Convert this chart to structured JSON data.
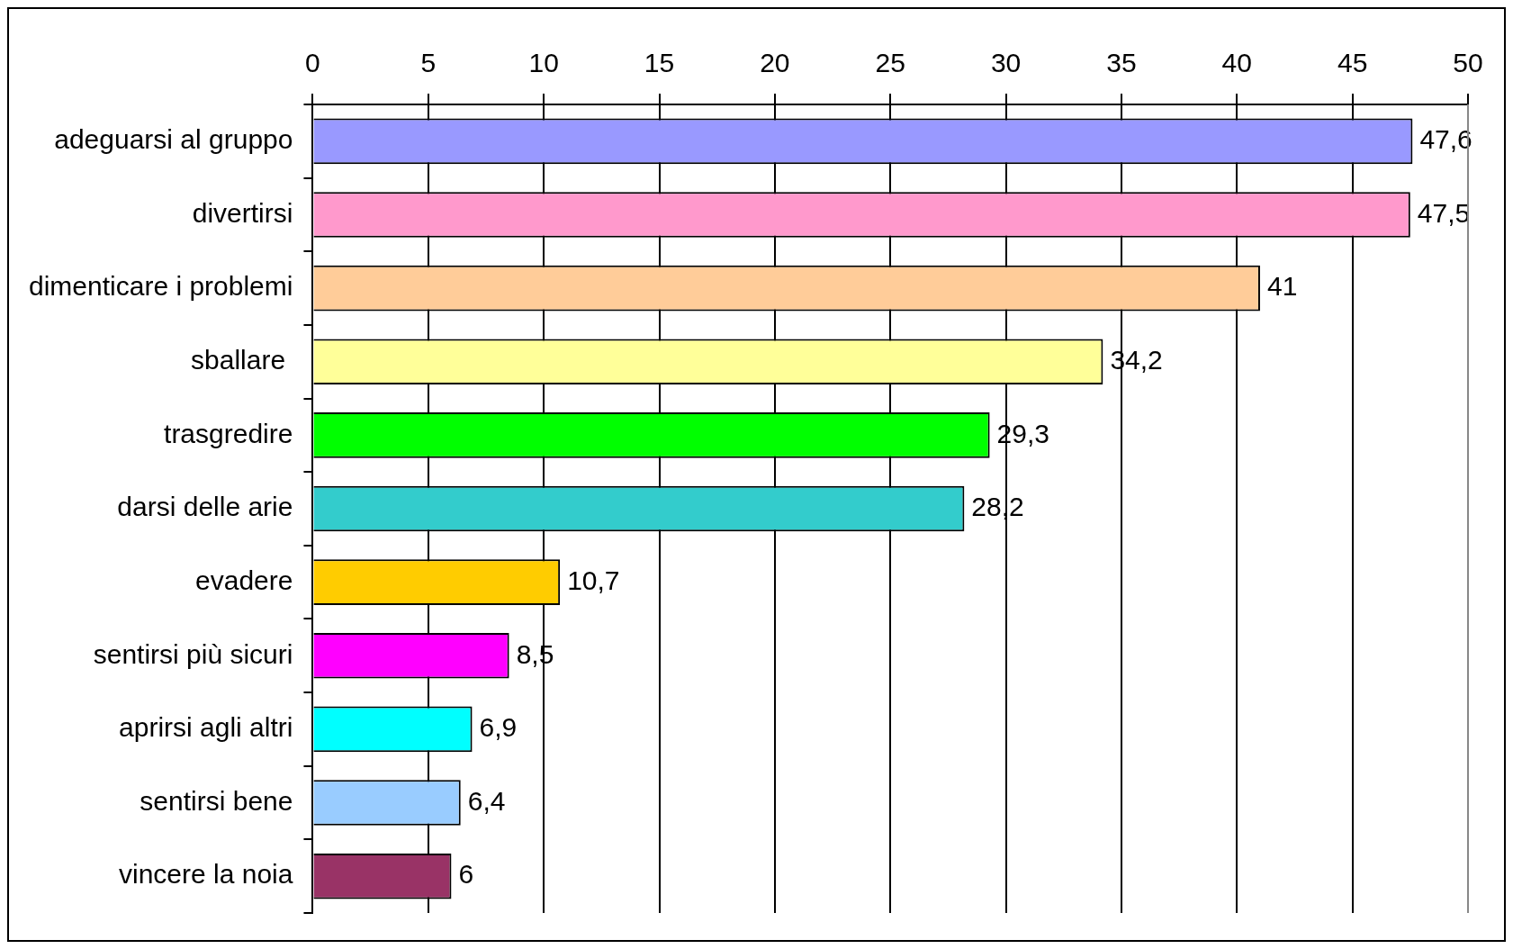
{
  "chart_data": {
    "type": "bar",
    "orientation": "horizontal",
    "categories": [
      "adeguarsi al gruppo",
      "divertirsi",
      "dimenticare i problemi",
      "sballare ",
      "trasgredire",
      "darsi delle arie",
      "evadere",
      "sentirsi più sicuri",
      "aprirsi agli altri",
      "sentirsi bene",
      "vincere la noia"
    ],
    "values": [
      47.6,
      47.5,
      41,
      34.2,
      29.3,
      28.2,
      10.7,
      8.5,
      6.9,
      6.4,
      6
    ],
    "value_labels": [
      "47,6",
      "47,5",
      "41",
      "34,2",
      "29,3",
      "28,2",
      "10,7",
      "8,5",
      "6,9",
      "6,4",
      "6"
    ],
    "colors": [
      "#9999ff",
      "#ff99cc",
      "#ffcc99",
      "#ffff99",
      "#00ff00",
      "#33cccc",
      "#ffcc00",
      "#ff00ff",
      "#00ffff",
      "#99ccff",
      "#993366"
    ],
    "xlim": [
      0,
      50
    ],
    "xticks": [
      0,
      5,
      10,
      15,
      20,
      25,
      30,
      35,
      40,
      45,
      50
    ],
    "grid": "x",
    "legend": false
  }
}
